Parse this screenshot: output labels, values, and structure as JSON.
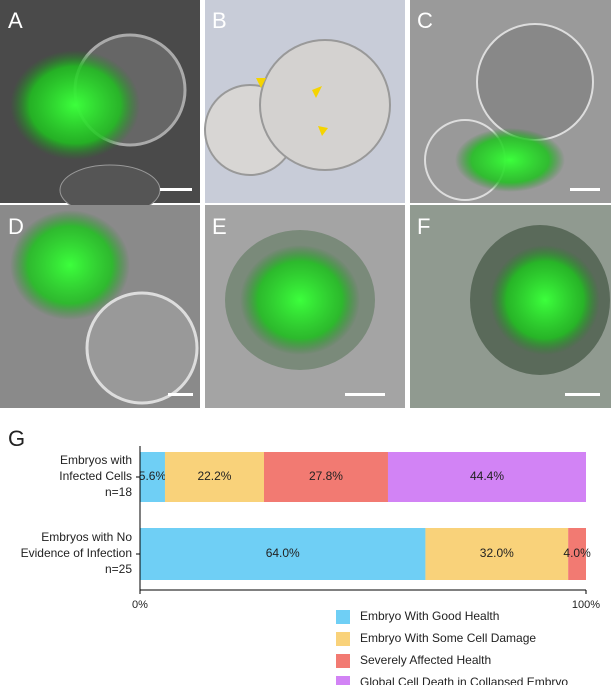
{
  "panels": [
    {
      "label": "A"
    },
    {
      "label": "B"
    },
    {
      "label": "C"
    },
    {
      "label": "D"
    },
    {
      "label": "E"
    },
    {
      "label": "F"
    }
  ],
  "chart_data": {
    "type": "stacked_barh",
    "panel_label": "G",
    "categories": [
      [
        "Embryos with",
        "Infected Cells",
        "n=18"
      ],
      [
        "Embryos with No",
        "Evidence of Infection",
        "n=25"
      ]
    ],
    "series": [
      {
        "name": "Embryo With Good Health",
        "color": "#6fcff5",
        "values": [
          5.6,
          64.0
        ],
        "value_labels": [
          "5.6%",
          "64.0%"
        ]
      },
      {
        "name": "Embryo With Some Cell Damage",
        "color": "#f9d27a",
        "values": [
          22.2,
          32.0
        ],
        "value_labels": [
          "22.2%",
          "32.0%"
        ]
      },
      {
        "name": "Severely Affected Health",
        "color": "#f27a72",
        "values": [
          27.8,
          4.0
        ],
        "value_labels": [
          "27.8%",
          "4.0%"
        ]
      },
      {
        "name": "Global Cell Death in Collapsed Embryo",
        "color": "#d283f5",
        "values": [
          44.4,
          null
        ],
        "value_labels": [
          "44.4%",
          null
        ]
      }
    ],
    "xlim": [
      0,
      100
    ],
    "xticks": [
      {
        "value": 0,
        "label": "0%"
      },
      {
        "value": 100,
        "label": "100%"
      }
    ]
  }
}
